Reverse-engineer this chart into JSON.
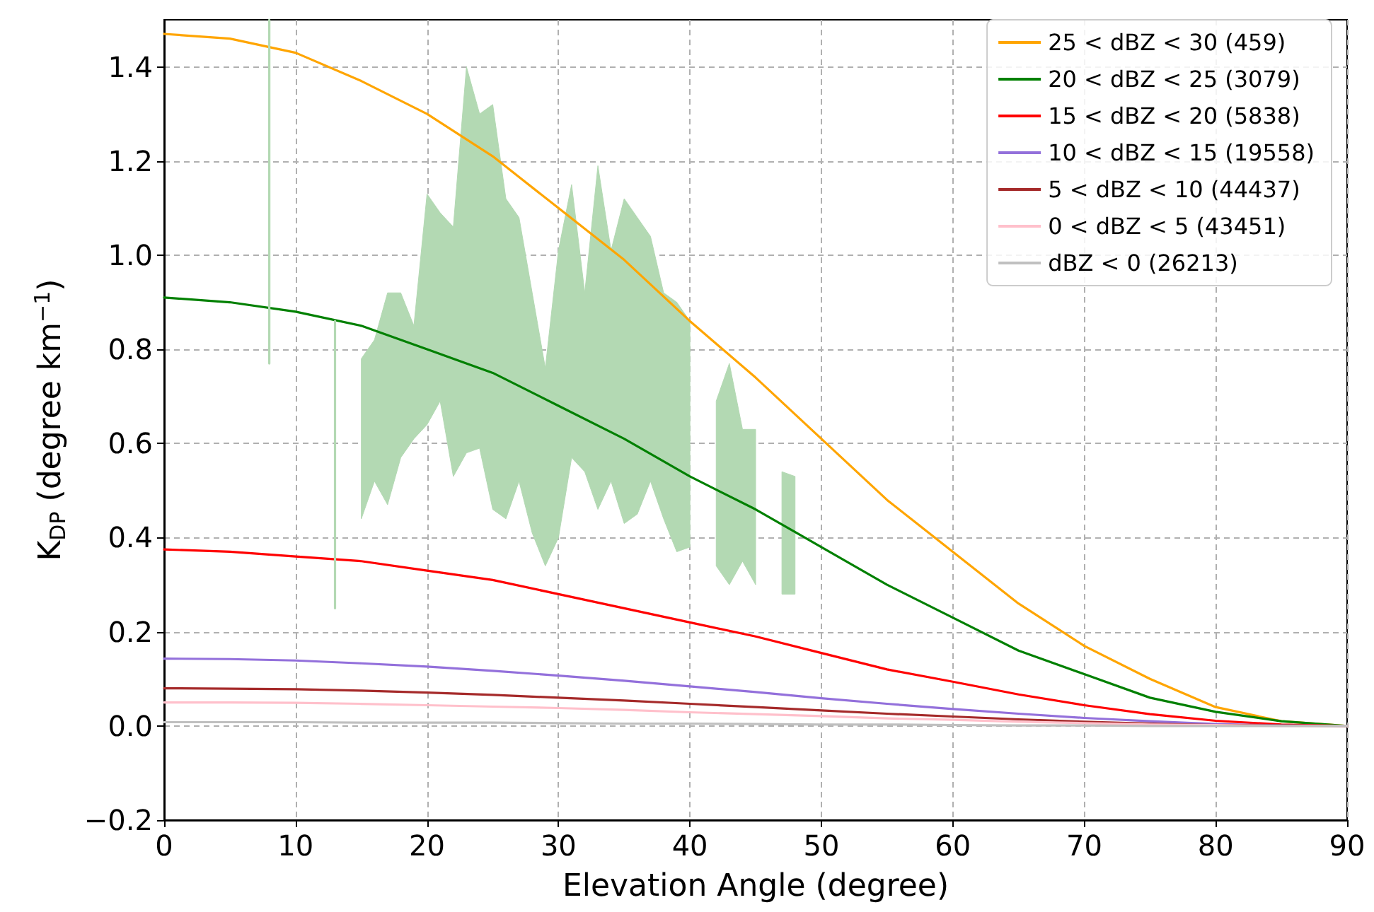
{
  "chart_data": {
    "type": "line",
    "xlabel": "Elevation Angle (degree)",
    "ylabel": "K$_{DP}$ (degree km$^{−1}$)",
    "x": [
      0,
      5,
      10,
      15,
      20,
      25,
      30,
      35,
      40,
      45,
      50,
      55,
      60,
      65,
      70,
      75,
      80,
      85,
      90
    ],
    "series": [
      {
        "name": "25 < dBZ < 30 (459)",
        "color": "#ffa500",
        "values": [
          1.47,
          1.46,
          1.43,
          1.37,
          1.3,
          1.21,
          1.1,
          0.99,
          0.86,
          0.74,
          0.61,
          0.48,
          0.37,
          0.26,
          0.17,
          0.1,
          0.04,
          0.01,
          0
        ]
      },
      {
        "name": "20 < dBZ < 25 (3079)",
        "color": "#008000",
        "values": [
          0.91,
          0.9,
          0.88,
          0.85,
          0.8,
          0.75,
          0.68,
          0.61,
          0.53,
          0.46,
          0.38,
          0.3,
          0.23,
          0.16,
          0.11,
          0.06,
          0.03,
          0.01,
          0
        ]
      },
      {
        "name": "15 < dBZ < 20 (5838)",
        "color": "#ff0000",
        "values": [
          0.375,
          0.37,
          0.36,
          0.35,
          0.33,
          0.31,
          0.28,
          0.25,
          0.22,
          0.19,
          0.155,
          0.12,
          0.094,
          0.067,
          0.044,
          0.025,
          0.011,
          0.003,
          0
        ]
      },
      {
        "name": "10 < dBZ < 15 (19558)",
        "color": "#9370db",
        "values": [
          0.143,
          0.142,
          0.139,
          0.133,
          0.126,
          0.117,
          0.107,
          0.096,
          0.084,
          0.072,
          0.059,
          0.047,
          0.036,
          0.026,
          0.017,
          0.01,
          0.004,
          0.001,
          0
        ]
      },
      {
        "name": "5 < dBZ < 10 (44437)",
        "color": "#a52a2a",
        "values": [
          0.08,
          0.079,
          0.078,
          0.075,
          0.071,
          0.066,
          0.06,
          0.054,
          0.047,
          0.04,
          0.033,
          0.026,
          0.02,
          0.014,
          0.009,
          0.005,
          0.002,
          0.001,
          0
        ]
      },
      {
        "name": "0 < dBZ < 5 (43451)",
        "color": "#ffc0cb",
        "values": [
          0.05,
          0.05,
          0.049,
          0.047,
          0.044,
          0.041,
          0.038,
          0.034,
          0.029,
          0.025,
          0.021,
          0.016,
          0.013,
          0.009,
          0.006,
          0.003,
          0.002,
          0,
          0
        ]
      },
      {
        "name": "dBZ < 0 (26213)",
        "color": "#c0c0c0",
        "values": [
          0.008,
          0.008,
          0.008,
          0.007,
          0.007,
          0.007,
          0.006,
          0.005,
          0.005,
          0.004,
          0.003,
          0.003,
          0.002,
          0.001,
          0.001,
          0,
          0,
          0,
          0
        ]
      },
      {
        "type": "line",
        "color": "#b3d9b3",
        "x": [
          8,
          8
        ],
        "values": [
          0.77,
          1.5
        ]
      },
      {
        "type": "line",
        "color": "#b3d9b3",
        "x": [
          13,
          13
        ],
        "values": [
          0.25,
          0.86
        ]
      },
      {
        "type": "area",
        "color": "#b3d9b3",
        "x": [
          15,
          16,
          17,
          18,
          19,
          20,
          21,
          22,
          23,
          24,
          25,
          26,
          27,
          28,
          29,
          30,
          31,
          32,
          33,
          34,
          35,
          36,
          37,
          38,
          39,
          40
        ],
        "values": [
          null,
          null,
          null,
          null,
          null,
          null,
          null,
          null,
          null,
          null,
          null,
          null,
          null,
          null,
          null,
          null,
          null,
          null,
          null,
          null,
          null,
          null,
          null,
          null,
          null,
          null
        ],
        "upper": [
          0.78,
          0.82,
          0.92,
          0.92,
          0.85,
          1.13,
          1.09,
          1.06,
          1.4,
          1.3,
          1.32,
          1.12,
          1.08,
          0.92,
          0.76,
          1.01,
          1.15,
          0.92,
          1.19,
          1.01,
          1.12,
          1.08,
          1.04,
          0.92,
          0.9,
          0.86
        ],
        "lower": [
          0.44,
          0.52,
          0.47,
          0.57,
          0.61,
          0.64,
          0.69,
          0.53,
          0.58,
          0.59,
          0.46,
          0.44,
          0.52,
          0.41,
          0.34,
          0.4,
          0.57,
          0.54,
          0.46,
          0.52,
          0.43,
          0.45,
          0.52,
          0.44,
          0.37,
          0.38
        ]
      },
      {
        "type": "area",
        "color": "#b3d9b3",
        "x": [
          42,
          43,
          44,
          45
        ],
        "values": [
          null,
          null,
          null,
          null
        ],
        "upper": [
          0.69,
          0.77,
          0.63,
          0.63
        ],
        "lower": [
          0.34,
          0.3,
          0.35,
          0.3
        ]
      },
      {
        "type": "area",
        "color": "#b3d9b3",
        "x": [
          47,
          48
        ],
        "values": [
          null,
          null
        ],
        "upper": [
          0.54,
          0.53
        ],
        "lower": [
          0.28,
          0.28
        ]
      }
    ],
    "xlim": [
      0,
      90
    ],
    "xticks": [
      0,
      10,
      20,
      30,
      40,
      50,
      60,
      70,
      80,
      90
    ],
    "ylim": [
      -0.2,
      1.5
    ],
    "yticks": [
      -0.2,
      {
        "value": 0,
        "label": "0.0"
      },
      0.2,
      0.4,
      0.6,
      0.8,
      {
        "value": 1,
        "label": "1.0"
      },
      1.2,
      1.4
    ],
    "grid": true,
    "legend": "top right",
    "line_style": "solid",
    "marker": "none"
  }
}
